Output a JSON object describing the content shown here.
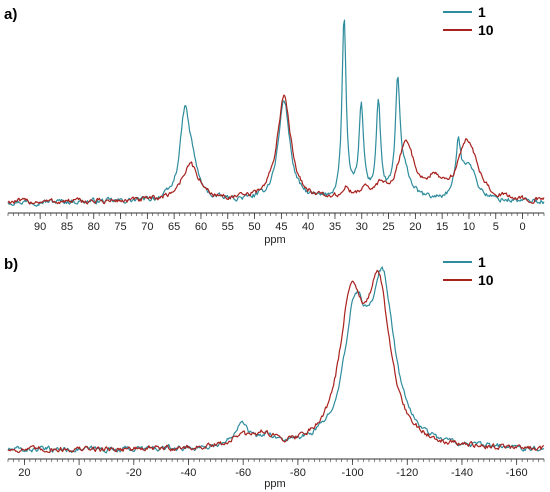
{
  "colors": {
    "series_1": "#2e8c9c",
    "series_10": "#a8221e",
    "axis": "#333333"
  },
  "chart_data": [
    {
      "type": "line",
      "panel_label": "a)",
      "xlabel": "ppm",
      "ylabel": "",
      "x_reversed": true,
      "xlim": [
        96,
        -4
      ],
      "ylim": [
        0,
        1
      ],
      "ticks": [
        90,
        85,
        80,
        75,
        70,
        65,
        60,
        55,
        50,
        45,
        40,
        35,
        30,
        25,
        20,
        15,
        10,
        5,
        0
      ],
      "minor_tick_step": 1,
      "legend_position": "top-right",
      "baseline": 0.05,
      "series": [
        {
          "name": "1",
          "peaks": [
            {
              "x": 63.0,
              "y": 0.42,
              "w": 1.1
            },
            {
              "x": 61.5,
              "y": 0.12,
              "w": 1.2
            },
            {
              "x": 44.5,
              "y": 0.5,
              "w": 1.3
            },
            {
              "x": 33.3,
              "y": 0.9,
              "w": 0.45
            },
            {
              "x": 30.1,
              "y": 0.44,
              "w": 0.55
            },
            {
              "x": 26.9,
              "y": 0.47,
              "w": 0.5
            },
            {
              "x": 23.3,
              "y": 0.54,
              "w": 0.5
            },
            {
              "x": 22.0,
              "y": 0.12,
              "w": 1.5
            },
            {
              "x": 12.0,
              "y": 0.24,
              "w": 0.6
            },
            {
              "x": 10.0,
              "y": 0.18,
              "w": 1.5
            }
          ]
        },
        {
          "name": "10",
          "peaks": [
            {
              "x": 62.0,
              "y": 0.18,
              "w": 2.0
            },
            {
              "x": 44.5,
              "y": 0.51,
              "w": 1.6
            },
            {
              "x": 33.0,
              "y": 0.05,
              "w": 0.8
            },
            {
              "x": 29.5,
              "y": 0.06,
              "w": 0.8
            },
            {
              "x": 26.5,
              "y": 0.06,
              "w": 0.8
            },
            {
              "x": 21.7,
              "y": 0.28,
              "w": 1.9
            },
            {
              "x": 16.5,
              "y": 0.08,
              "w": 1.2
            },
            {
              "x": 10.3,
              "y": 0.3,
              "w": 2.2
            }
          ]
        }
      ]
    },
    {
      "type": "line",
      "panel_label": "b)",
      "xlabel": "ppm",
      "ylabel": "",
      "x_reversed": true,
      "xlim": [
        26,
        -170
      ],
      "ylim": [
        0,
        1
      ],
      "ticks": [
        20,
        0,
        -20,
        -40,
        -60,
        -80,
        -100,
        -120,
        -140,
        -160
      ],
      "minor_tick_step": 2,
      "legend_position": "top-right",
      "baseline": 0.04,
      "series": [
        {
          "name": "1",
          "peaks": [
            {
              "x": -59.5,
              "y": 0.13,
              "w": 3.0
            },
            {
              "x": -69.0,
              "y": 0.05,
              "w": 3.0
            },
            {
              "x": -101.0,
              "y": 0.62,
              "w": 5.0
            },
            {
              "x": -111.0,
              "y": 0.78,
              "w": 5.2
            }
          ]
        },
        {
          "name": "10",
          "peaks": [
            {
              "x": -59.0,
              "y": 0.05,
              "w": 4.0
            },
            {
              "x": -67.5,
              "y": 0.06,
              "w": 4.0
            },
            {
              "x": -99.5,
              "y": 0.69,
              "w": 5.0
            },
            {
              "x": -109.5,
              "y": 0.74,
              "w": 5.2
            }
          ]
        }
      ]
    }
  ]
}
